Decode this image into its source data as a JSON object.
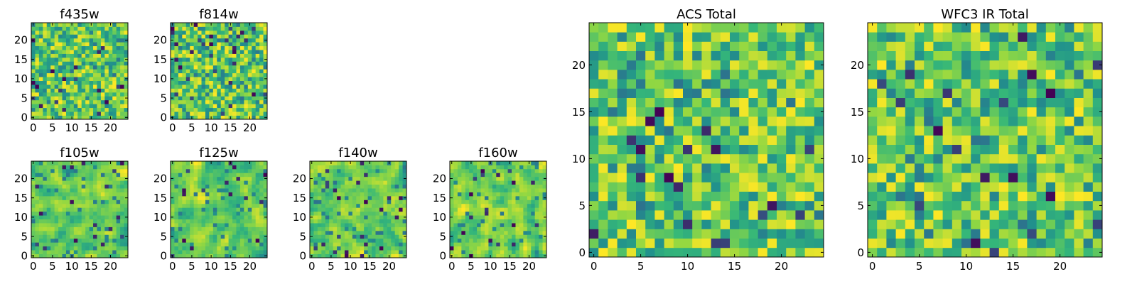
{
  "figure": {
    "colormap": "viridis",
    "colormap_stops": [
      "#440154",
      "#31688e",
      "#21918c",
      "#35b779",
      "#90d743",
      "#fde725"
    ]
  },
  "chart_data": [
    {
      "type": "heatmap",
      "title": "f435w",
      "grid_size": 25,
      "xlim": [
        0,
        24
      ],
      "ylim": [
        0,
        24
      ],
      "xticks": [
        0,
        5,
        10,
        15,
        20
      ],
      "yticks": [
        0,
        5,
        10,
        15,
        20
      ],
      "smoothness": 0,
      "seed": 11
    },
    {
      "type": "heatmap",
      "title": "f814w",
      "grid_size": 25,
      "xlim": [
        0,
        24
      ],
      "ylim": [
        0,
        24
      ],
      "xticks": [
        0,
        5,
        10,
        15,
        20
      ],
      "yticks": [
        0,
        5,
        10,
        15,
        20
      ],
      "smoothness": 0,
      "seed": 23
    },
    {
      "type": "heatmap",
      "title": "f105w",
      "grid_size": 25,
      "xlim": [
        0,
        24
      ],
      "ylim": [
        0,
        24
      ],
      "xticks": [
        0,
        5,
        10,
        15,
        20
      ],
      "yticks": [
        0,
        5,
        10,
        15,
        20
      ],
      "smoothness": 1,
      "seed": 37
    },
    {
      "type": "heatmap",
      "title": "f125w",
      "grid_size": 25,
      "xlim": [
        0,
        24
      ],
      "ylim": [
        0,
        24
      ],
      "xticks": [
        0,
        5,
        10,
        15,
        20
      ],
      "yticks": [
        0,
        5,
        10,
        15,
        20
      ],
      "smoothness": 1,
      "seed": 41
    },
    {
      "type": "heatmap",
      "title": "f140w",
      "grid_size": 25,
      "xlim": [
        0,
        24
      ],
      "ylim": [
        0,
        24
      ],
      "xticks": [
        0,
        5,
        10,
        15,
        20
      ],
      "yticks": [
        0,
        5,
        10,
        15,
        20
      ],
      "smoothness": 1,
      "seed": 53
    },
    {
      "type": "heatmap",
      "title": "f160w",
      "grid_size": 25,
      "xlim": [
        0,
        24
      ],
      "ylim": [
        0,
        24
      ],
      "xticks": [
        0,
        5,
        10,
        15,
        20
      ],
      "yticks": [
        0,
        5,
        10,
        15,
        20
      ],
      "smoothness": 1,
      "seed": 67
    },
    {
      "type": "heatmap",
      "title": "ACS Total",
      "grid_size": 25,
      "xlim": [
        0,
        24
      ],
      "ylim": [
        0,
        24
      ],
      "xticks": [
        0,
        5,
        10,
        15,
        20
      ],
      "yticks": [
        0,
        5,
        10,
        15,
        20
      ],
      "smoothness": 0,
      "seed": 79
    },
    {
      "type": "heatmap",
      "title": "WFC3 IR Total",
      "grid_size": 25,
      "xlim": [
        0,
        24
      ],
      "ylim": [
        0,
        24
      ],
      "xticks": [
        0,
        5,
        10,
        15,
        20
      ],
      "yticks": [
        0,
        5,
        10,
        15,
        20
      ],
      "smoothness": 0,
      "seed": 97
    }
  ]
}
